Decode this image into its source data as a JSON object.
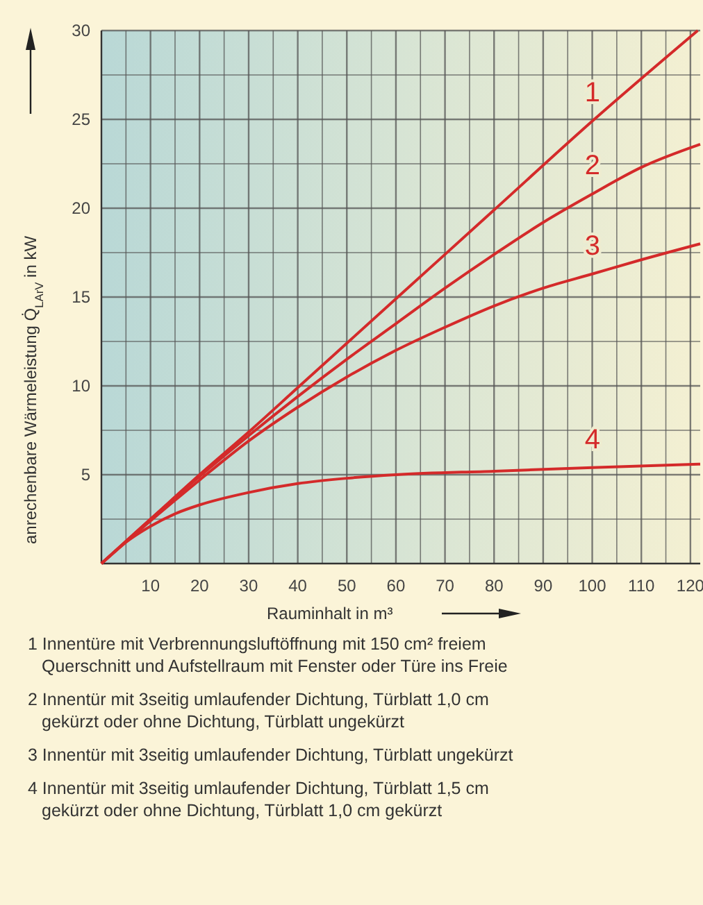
{
  "chart_data": {
    "type": "line",
    "xlabel": "Rauminhalt in m³",
    "ylabel": "anrechenbare Wärmeleistung Q̇$_{LArV}$ in kW",
    "xlim": [
      0,
      122
    ],
    "ylim": [
      0,
      30
    ],
    "xticks": [
      {
        "value": 5,
        "label": null
      },
      10,
      {
        "value": 15,
        "label": null
      },
      20,
      {
        "value": 25,
        "label": null
      },
      30,
      {
        "value": 35,
        "label": null
      },
      40,
      {
        "value": 45,
        "label": null
      },
      50,
      {
        "value": 55,
        "label": null
      },
      60,
      {
        "value": 65,
        "label": null
      },
      70,
      {
        "value": 75,
        "label": null
      },
      80,
      {
        "value": 85,
        "label": null
      },
      90,
      {
        "value": 95,
        "label": null
      },
      100,
      {
        "value": 105,
        "label": null
      },
      110,
      {
        "value": 115,
        "label": null
      },
      120
    ],
    "yticks": [
      {
        "value": 2.5,
        "label": null
      },
      5,
      {
        "value": 7.5,
        "label": null
      },
      10,
      {
        "value": 12.5,
        "label": null
      },
      15,
      {
        "value": 17.5,
        "label": null
      },
      20,
      {
        "value": 22.5,
        "label": null
      },
      25,
      {
        "value": 27.5,
        "label": null
      },
      30
    ],
    "grid": true,
    "marker": "none",
    "line_style": "solid",
    "series": [
      {
        "name": "1",
        "color": "#d42a2a",
        "x": [
          0,
          10,
          20,
          30,
          40,
          60,
          80,
          100,
          121.5
        ],
        "values": [
          0,
          2.5,
          5,
          7.4,
          9.9,
          14.9,
          19.9,
          24.9,
          30
        ]
      },
      {
        "name": "2",
        "color": "#d42a2a",
        "x": [
          0,
          10,
          20,
          30,
          40,
          50,
          60,
          70,
          80,
          90,
          100,
          110,
          122
        ],
        "values": [
          0,
          2.5,
          4.9,
          7.2,
          9.4,
          11.5,
          13.5,
          15.5,
          17.4,
          19.2,
          20.8,
          22.3,
          23.6
        ]
      },
      {
        "name": "3",
        "color": "#d42a2a",
        "x": [
          0,
          10,
          20,
          30,
          40,
          50,
          60,
          70,
          80,
          90,
          100,
          110,
          122
        ],
        "values": [
          0,
          2.4,
          4.7,
          6.9,
          8.8,
          10.5,
          12,
          13.3,
          14.5,
          15.5,
          16.3,
          17.1,
          18
        ]
      },
      {
        "name": "4",
        "color": "#d42a2a",
        "x": [
          0,
          5,
          10,
          15,
          20,
          30,
          40,
          50,
          60,
          80,
          100,
          122
        ],
        "values": [
          0,
          1.2,
          2.1,
          2.8,
          3.3,
          4,
          4.5,
          4.8,
          5,
          5.2,
          5.4,
          5.6
        ]
      }
    ],
    "annotations": [
      "1 Innentüre mit Verbrennungsluftöffnung mit 150 cm² freiem Querschnitt und Aufstellraum mit Fenster oder Türe ins Freie",
      "2 Innentür mit 3seitig umlaufender Dichtung, Türblatt 1,0 cm gekürzt oder ohne Dichtung, Türblatt ungekürzt",
      "3 Innentür mit 3seitig umlaufender Dichtung, Türblatt ungekürzt",
      "4 Innentür mit 3seitig umlaufender Dichtung, Türblatt 1,5 cm gekürzt oder ohne Dichtung, Türblatt 1,0 cm gekürzt"
    ]
  }
}
